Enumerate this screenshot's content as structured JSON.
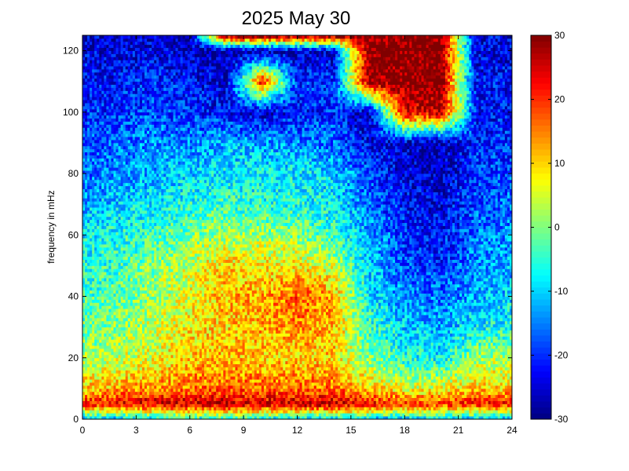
{
  "chart_data": {
    "type": "heatmap",
    "title": "2025 May 30",
    "xlabel": "",
    "ylabel": "frequency in mHz",
    "xlim": [
      0,
      24
    ],
    "ylim": [
      0,
      125
    ],
    "x_ticks": [
      0,
      3,
      6,
      9,
      12,
      15,
      18,
      21,
      24
    ],
    "y_ticks": [
      0,
      20,
      40,
      60,
      80,
      100,
      120
    ],
    "colorbar": {
      "colormap": "jet",
      "range": [
        -30,
        30
      ],
      "ticks": [
        30,
        20,
        10,
        0,
        -10,
        -20,
        -30
      ]
    },
    "grid": false,
    "x_hours": [
      0,
      2,
      4,
      6,
      8,
      10,
      12,
      14,
      16,
      18,
      20,
      22,
      24
    ],
    "freq_mhz": [
      0,
      5,
      10,
      20,
      30,
      40,
      50,
      60,
      70,
      80,
      90,
      100,
      110,
      120,
      125
    ],
    "values": [
      [
        -14,
        -12,
        -10,
        -8,
        -6,
        -8,
        -10,
        -10,
        -12,
        -12,
        -12,
        -12,
        -14
      ],
      [
        22,
        23,
        25,
        25,
        26,
        25,
        26,
        26,
        23,
        20,
        20,
        22,
        22
      ],
      [
        10,
        12,
        14,
        16,
        17,
        16,
        16,
        16,
        10,
        6,
        6,
        10,
        10
      ],
      [
        2,
        4,
        6,
        10,
        12,
        10,
        10,
        10,
        0,
        -6,
        -8,
        2,
        2
      ],
      [
        -2,
        0,
        4,
        8,
        10,
        12,
        14,
        12,
        -4,
        -10,
        -12,
        -8,
        -6
      ],
      [
        -4,
        -2,
        2,
        6,
        12,
        12,
        18,
        12,
        -8,
        -14,
        -16,
        -12,
        -10
      ],
      [
        -6,
        -4,
        0,
        4,
        10,
        8,
        8,
        4,
        -10,
        -18,
        -20,
        -14,
        -12
      ],
      [
        -8,
        -6,
        -4,
        0,
        2,
        2,
        0,
        -4,
        -12,
        -20,
        -22,
        -16,
        -14
      ],
      [
        -12,
        -10,
        -8,
        -6,
        -4,
        -6,
        -6,
        -8,
        -16,
        -22,
        -24,
        -18,
        -16
      ],
      [
        -16,
        -14,
        -12,
        -10,
        -8,
        -8,
        -8,
        -10,
        -18,
        -24,
        -26,
        -20,
        -18
      ],
      [
        -18,
        -16,
        -14,
        -14,
        -12,
        -12,
        -14,
        -16,
        -24,
        -26,
        -28,
        -20,
        -20
      ],
      [
        -20,
        -20,
        -18,
        -20,
        -22,
        -26,
        -22,
        -20,
        -26,
        24,
        26,
        -22,
        -22
      ],
      [
        -22,
        -22,
        -20,
        -22,
        -26,
        22,
        -20,
        -20,
        28,
        30,
        30,
        -22,
        -22
      ],
      [
        -24,
        -24,
        -24,
        -26,
        -28,
        -28,
        -26,
        -26,
        30,
        30,
        30,
        -24,
        -24
      ],
      [
        -24,
        -26,
        -26,
        -26,
        30,
        30,
        30,
        30,
        30,
        30,
        30,
        -24,
        -24
      ]
    ]
  }
}
